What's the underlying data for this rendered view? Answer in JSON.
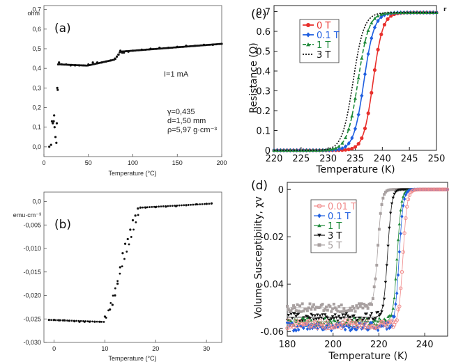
{
  "chart_data": [
    {
      "type": "scatter",
      "panel_label": "(a)",
      "unit_label": "ohm",
      "xlabel": "Temperature (°C)",
      "xlim": [
        0,
        200
      ],
      "ylim": [
        -0.05,
        0.72
      ],
      "xticks": [
        0,
        50,
        100,
        150,
        200
      ],
      "yticks": [
        0.0,
        0.1,
        0.2,
        0.3,
        0.4,
        0.5,
        0.6,
        0.7
      ],
      "yticklabels": [
        "0,0",
        "0,1",
        "0,2",
        "0,3",
        "0,4",
        "0,5",
        "0,6",
        "0,7"
      ],
      "annotations": [
        "I=1 mA",
        "γ=0,435",
        "d=1,50 mm",
        "ρ=5,97 g·cm⁻³"
      ],
      "series": [
        {
          "color": "#111111",
          "x": [
            6,
            8,
            9,
            10,
            11,
            11.5,
            12,
            13,
            14,
            14.5,
            15,
            15.5,
            16,
            17,
            20,
            25,
            30,
            35,
            40,
            45,
            50,
            55,
            60,
            65,
            70,
            75,
            80,
            82,
            84,
            86,
            88,
            90,
            95,
            100,
            110,
            120,
            130,
            140,
            150,
            160,
            170,
            180,
            190,
            200
          ],
          "y": [
            0.0,
            0.01,
            0.13,
            0.12,
            0.13,
            0.16,
            0.1,
            0.05,
            0.02,
            0.12,
            0.3,
            0.29,
            0.42,
            0.43,
            0.42,
            0.42,
            0.415,
            0.415,
            0.415,
            0.415,
            0.42,
            0.43,
            0.43,
            0.43,
            0.435,
            0.44,
            0.45,
            0.46,
            0.47,
            0.49,
            0.48,
            0.48,
            0.485,
            0.49,
            0.495,
            0.5,
            0.505,
            0.505,
            0.51,
            0.515,
            0.515,
            0.52,
            0.52,
            0.525
          ]
        }
      ]
    },
    {
      "type": "scatter",
      "panel_label": "(b)",
      "unit_label": "emu·cm⁻³",
      "xlabel": "Temperature (°C)",
      "xlim": [
        -2,
        33
      ],
      "ylim": [
        -0.03,
        0.002
      ],
      "xticks": [
        0,
        10,
        20,
        30
      ],
      "yticks": [
        0.0,
        -0.005,
        -0.01,
        -0.015,
        -0.02,
        -0.025,
        -0.03
      ],
      "yticklabels": [
        "0,0",
        "-0,005",
        "-0,010",
        "-0,015",
        "-0,020",
        "-0,025",
        "-0,030"
      ],
      "series": [
        {
          "color": "#111111",
          "x": [
            -1,
            0,
            1,
            2,
            3,
            4,
            5,
            6,
            7,
            8,
            9,
            10,
            11,
            11.5,
            12,
            12.5,
            13,
            13.5,
            14,
            14.5,
            15,
            15.5,
            16,
            16.5,
            17,
            18,
            20,
            22,
            24,
            26,
            28,
            30,
            31
          ],
          "y": [
            -0.0252,
            -0.0252,
            -0.0253,
            -0.0253,
            -0.0254,
            -0.0255,
            -0.0256,
            -0.0256,
            -0.0256,
            -0.0256,
            -0.0256,
            -0.0245,
            -0.023,
            -0.022,
            -0.02,
            -0.0175,
            -0.014,
            -0.011,
            -0.009,
            -0.008,
            -0.006,
            -0.004,
            -0.003,
            -0.0015,
            -0.0013,
            -0.0013,
            -0.0012,
            -0.0011,
            -0.001,
            -0.0008,
            -0.0006,
            -0.0005,
            -0.0004
          ]
        }
      ]
    },
    {
      "type": "line",
      "panel_label": "(c)",
      "xlabel": "Temperature (K)",
      "ylabel": "Resistance (Ω)",
      "xlim": [
        220,
        250
      ],
      "ylim": [
        0,
        0.73
      ],
      "xticks": [
        220,
        225,
        230,
        235,
        240,
        245,
        250
      ],
      "yticks": [
        0,
        0.1,
        0.2,
        0.3,
        0.4,
        0.5,
        0.6,
        0.7
      ],
      "legend_position": "top-left",
      "series": [
        {
          "name": "0 T",
          "color": "#e8302c",
          "style": "solid",
          "marker": "circle",
          "tc": 238.3,
          "width": 0.9
        },
        {
          "name": "0.1 T",
          "color": "#1f5fe0",
          "style": "solid",
          "marker": "diamond",
          "tc": 236.6,
          "width": 0.95
        },
        {
          "name": "1 T",
          "color": "#1f8a3a",
          "style": "dashed",
          "marker": "triangle",
          "tc": 235.5,
          "width": 1.0
        },
        {
          "name": "3 T",
          "color": "#111111",
          "style": "dotted",
          "marker": "none",
          "tc": 234.6,
          "width": 1.0
        }
      ],
      "r_max": 0.695
    },
    {
      "type": "line",
      "panel_label": "(d)",
      "xlabel": "Temperature (K)",
      "ylabel": "Volume Susceptibility, χv",
      "xlim": [
        180,
        250
      ],
      "ylim": [
        -0.062,
        0.003
      ],
      "xticks": [
        180,
        200,
        220,
        240
      ],
      "yticks": [
        0,
        -0.02,
        -0.04,
        -0.06
      ],
      "legend_position": "center-left",
      "series": [
        {
          "name": "0.01 T",
          "color": "#f08a8a",
          "marker": "circle-open",
          "tc": 230.5,
          "low": -0.057
        },
        {
          "name": "0.1 T",
          "color": "#1f5fe0",
          "marker": "diamond",
          "tc": 228.8,
          "low": -0.058
        },
        {
          "name": "1 T",
          "color": "#1f8a3a",
          "marker": "triangle",
          "tc": 228.0,
          "low": -0.056
        },
        {
          "name": "3 T",
          "color": "#111111",
          "marker": "triangle-down",
          "tc": 223.8,
          "low": -0.054
        },
        {
          "name": "5 T",
          "color": "#a8a0a0",
          "marker": "square",
          "tc": 219.5,
          "low": -0.05
        }
      ]
    }
  ],
  "corner_glyph": "r"
}
